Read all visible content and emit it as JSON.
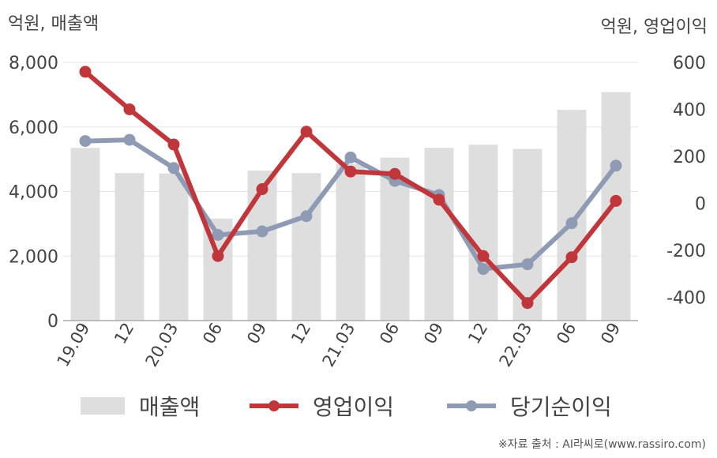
{
  "chart_data": {
    "type": "bar+line",
    "left_axis_title": "억원, 매출액",
    "right_axis_title": "억원, 영업이익",
    "categories": [
      "19.09",
      "12",
      "20.03",
      "06",
      "09",
      "12",
      "21.03",
      "06",
      "09",
      "12",
      "22.03",
      "06",
      "09"
    ],
    "series": [
      {
        "name": "매출액",
        "kind": "bar",
        "axis": "left",
        "color": "#dedede",
        "values": [
          5350,
          4570,
          4560,
          3160,
          4650,
          4570,
          4850,
          5050,
          5350,
          5450,
          5320,
          6530,
          7080
        ]
      },
      {
        "name": "영업이익",
        "kind": "line",
        "axis": "right",
        "color": "#c0363a",
        "values": [
          560,
          400,
          250,
          -225,
          60,
          305,
          135,
          125,
          15,
          -225,
          -425,
          -230,
          10
        ]
      },
      {
        "name": "당기순이익",
        "kind": "line",
        "axis": "right",
        "color": "#8f9bb5",
        "values": [
          265,
          270,
          150,
          -135,
          -120,
          -55,
          195,
          95,
          35,
          -280,
          -260,
          -85,
          160
        ]
      }
    ],
    "left_axis": {
      "ylim": [
        0,
        8000
      ],
      "ticks": [
        "0",
        "2,000",
        "4,000",
        "6,000",
        "8,000"
      ]
    },
    "right_axis": {
      "ylim": [
        -500,
        600
      ],
      "ticks": [
        "-400",
        "-200",
        "0",
        "200",
        "400",
        "600"
      ]
    },
    "grid": true,
    "legend_position": "bottom"
  },
  "legend": {
    "bar_label": "매출액",
    "line1_label": "영업이익",
    "line2_label": "당기순이익"
  },
  "source": "※자료 출처 : AI라씨로(www.rassiro.com)"
}
